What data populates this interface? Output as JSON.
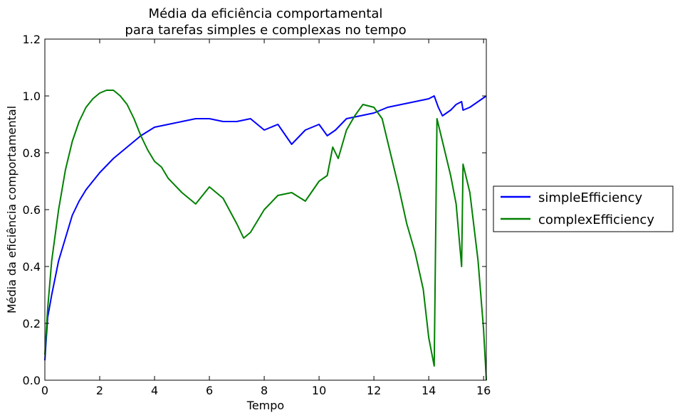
{
  "chart_data": {
    "type": "line",
    "title_line1": "Média da eficiência comportamental",
    "title_line2": "para tarefas simples e complexas no tempo",
    "xlabel": "Tempo",
    "ylabel": "Média da eficiência comportamental",
    "xlim": [
      0,
      16.1
    ],
    "ylim": [
      0,
      1.2
    ],
    "x_ticks": [
      0,
      2,
      4,
      6,
      8,
      10,
      12,
      14,
      16
    ],
    "x_tick_labels": [
      "0",
      "2",
      "4",
      "6",
      "8",
      "10",
      "12",
      "14",
      "16"
    ],
    "y_ticks": [
      0,
      0.2,
      0.4,
      0.6,
      0.8,
      1.0,
      1.2
    ],
    "y_tick_labels": [
      "0.0",
      "0.2",
      "0.4",
      "0.6",
      "0.8",
      "1.0",
      "1.2"
    ],
    "grid": false,
    "legend_position": "outside-right",
    "series": [
      {
        "name": "simpleEfficiency",
        "color": "#0000ff",
        "points": [
          [
            0.0,
            0.07
          ],
          [
            0.1,
            0.22
          ],
          [
            0.25,
            0.3
          ],
          [
            0.5,
            0.42
          ],
          [
            0.75,
            0.5
          ],
          [
            1.0,
            0.58
          ],
          [
            1.25,
            0.63
          ],
          [
            1.5,
            0.67
          ],
          [
            1.75,
            0.7
          ],
          [
            2.0,
            0.73
          ],
          [
            2.5,
            0.78
          ],
          [
            3.0,
            0.82
          ],
          [
            3.5,
            0.86
          ],
          [
            4.0,
            0.89
          ],
          [
            4.5,
            0.9
          ],
          [
            5.0,
            0.91
          ],
          [
            5.5,
            0.92
          ],
          [
            6.0,
            0.92
          ],
          [
            6.5,
            0.91
          ],
          [
            7.0,
            0.91
          ],
          [
            7.5,
            0.92
          ],
          [
            8.0,
            0.88
          ],
          [
            8.5,
            0.9
          ],
          [
            9.0,
            0.83
          ],
          [
            9.5,
            0.88
          ],
          [
            10.0,
            0.9
          ],
          [
            10.3,
            0.86
          ],
          [
            10.6,
            0.88
          ],
          [
            11.0,
            0.92
          ],
          [
            11.5,
            0.93
          ],
          [
            12.0,
            0.94
          ],
          [
            12.5,
            0.96
          ],
          [
            13.0,
            0.97
          ],
          [
            13.5,
            0.98
          ],
          [
            14.0,
            0.99
          ],
          [
            14.2,
            1.0
          ],
          [
            14.35,
            0.96
          ],
          [
            14.5,
            0.93
          ],
          [
            14.8,
            0.95
          ],
          [
            15.0,
            0.97
          ],
          [
            15.2,
            0.98
          ],
          [
            15.25,
            0.95
          ],
          [
            15.5,
            0.96
          ],
          [
            15.8,
            0.98
          ],
          [
            16.1,
            1.0
          ]
        ]
      },
      {
        "name": "complexEfficiency",
        "color": "#008000",
        "points": [
          [
            0.0,
            0.09
          ],
          [
            0.1,
            0.25
          ],
          [
            0.25,
            0.42
          ],
          [
            0.5,
            0.6
          ],
          [
            0.75,
            0.74
          ],
          [
            1.0,
            0.84
          ],
          [
            1.25,
            0.91
          ],
          [
            1.5,
            0.96
          ],
          [
            1.75,
            0.99
          ],
          [
            2.0,
            1.01
          ],
          [
            2.25,
            1.02
          ],
          [
            2.5,
            1.02
          ],
          [
            2.75,
            1.0
          ],
          [
            3.0,
            0.97
          ],
          [
            3.25,
            0.92
          ],
          [
            3.5,
            0.86
          ],
          [
            3.75,
            0.81
          ],
          [
            4.0,
            0.77
          ],
          [
            4.25,
            0.75
          ],
          [
            4.5,
            0.71
          ],
          [
            5.0,
            0.66
          ],
          [
            5.5,
            0.62
          ],
          [
            6.0,
            0.68
          ],
          [
            6.5,
            0.64
          ],
          [
            7.0,
            0.55
          ],
          [
            7.25,
            0.5
          ],
          [
            7.5,
            0.52
          ],
          [
            8.0,
            0.6
          ],
          [
            8.5,
            0.65
          ],
          [
            9.0,
            0.66
          ],
          [
            9.5,
            0.63
          ],
          [
            10.0,
            0.7
          ],
          [
            10.3,
            0.72
          ],
          [
            10.5,
            0.82
          ],
          [
            10.7,
            0.78
          ],
          [
            11.0,
            0.88
          ],
          [
            11.3,
            0.93
          ],
          [
            11.6,
            0.97
          ],
          [
            12.0,
            0.96
          ],
          [
            12.3,
            0.92
          ],
          [
            12.6,
            0.8
          ],
          [
            12.9,
            0.68
          ],
          [
            13.2,
            0.55
          ],
          [
            13.5,
            0.45
          ],
          [
            13.8,
            0.32
          ],
          [
            14.0,
            0.15
          ],
          [
            14.2,
            0.05
          ],
          [
            14.3,
            0.92
          ],
          [
            14.5,
            0.84
          ],
          [
            14.8,
            0.72
          ],
          [
            15.0,
            0.62
          ],
          [
            15.2,
            0.4
          ],
          [
            15.25,
            0.76
          ],
          [
            15.5,
            0.66
          ],
          [
            15.8,
            0.42
          ],
          [
            16.0,
            0.18
          ],
          [
            16.1,
            0.0
          ]
        ]
      }
    ]
  }
}
